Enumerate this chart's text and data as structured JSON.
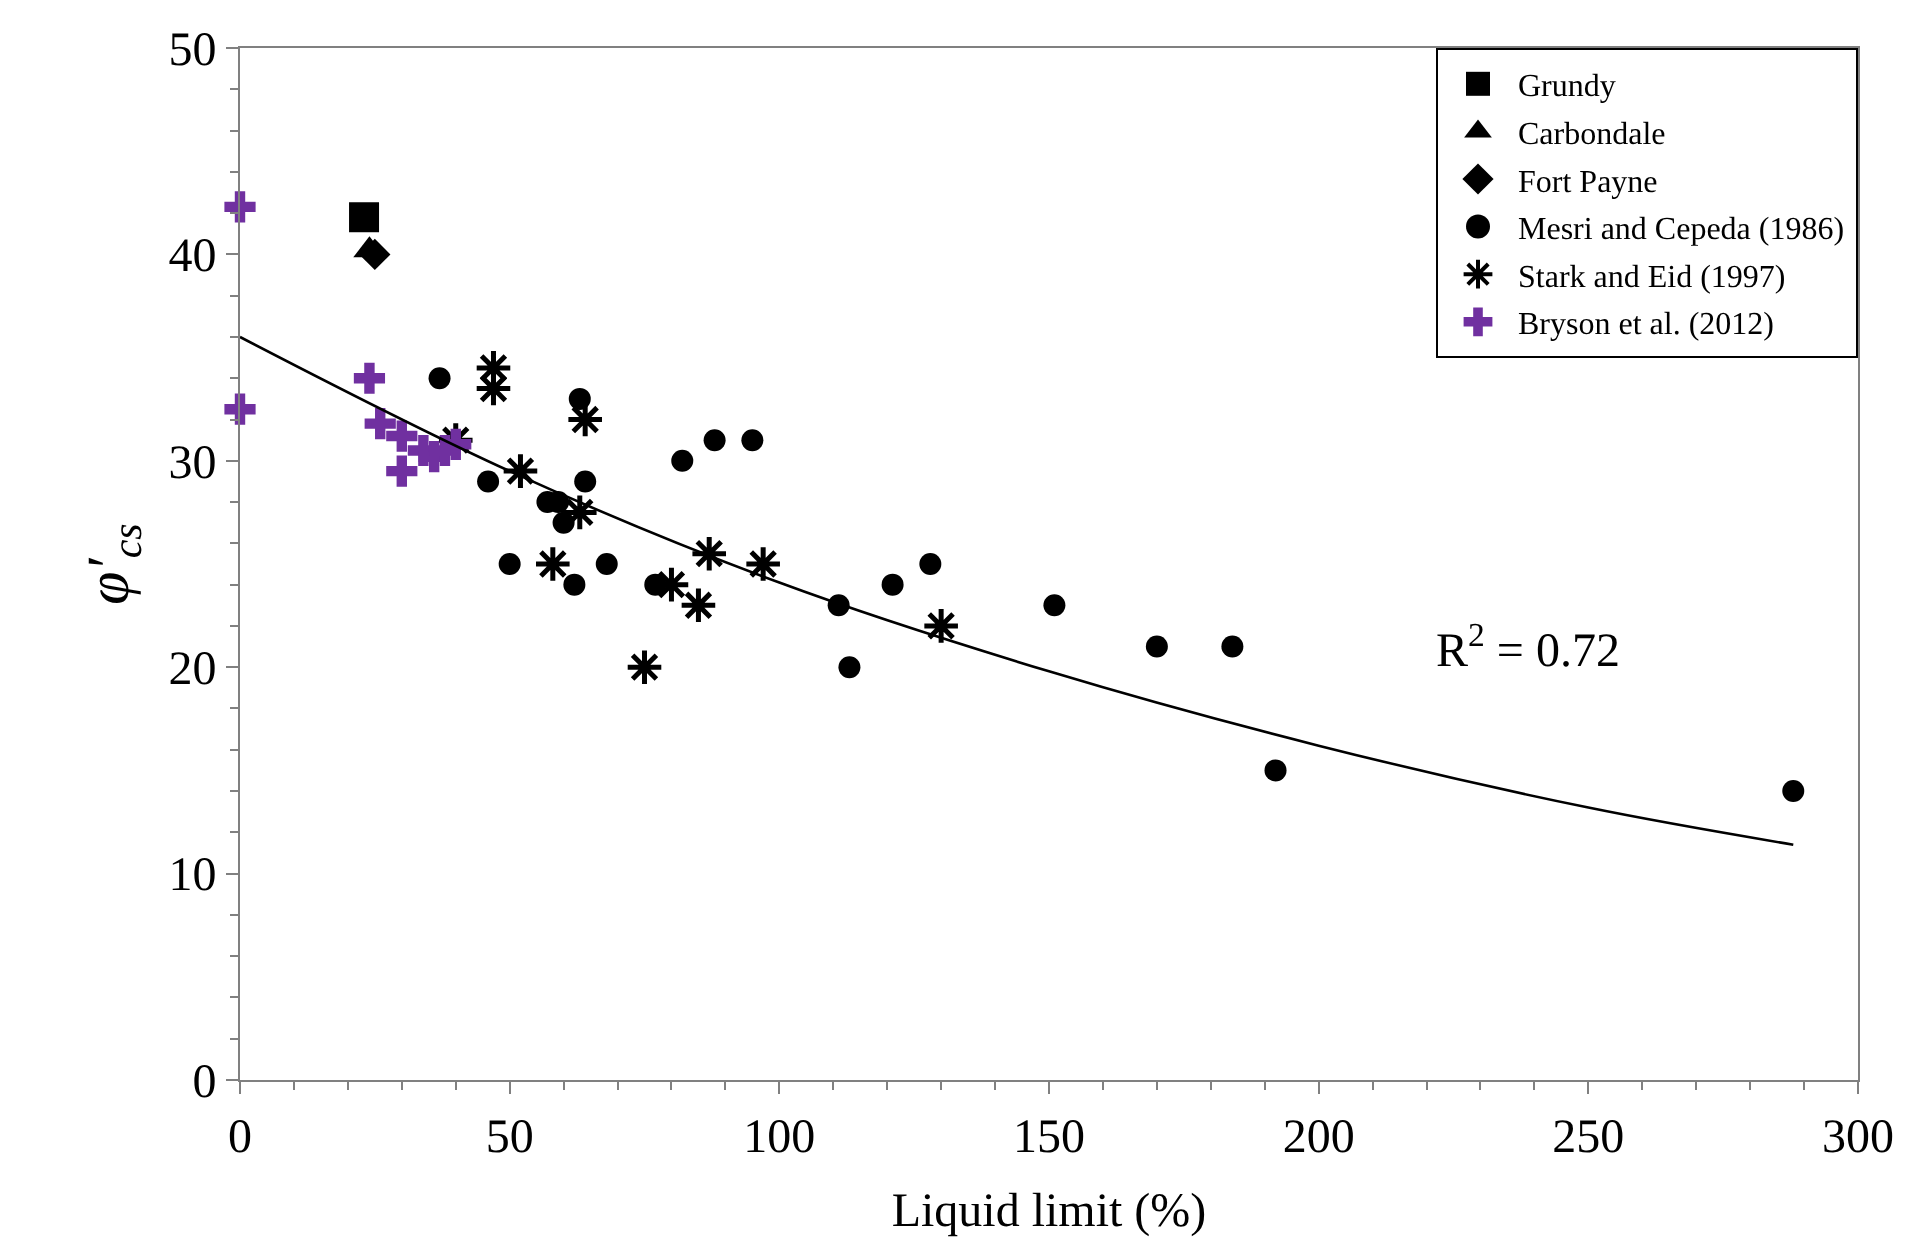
{
  "chart_data": {
    "type": "scatter",
    "xlabel": "Liquid limit (%)",
    "ylabel": "φ′$_{cs}$",
    "xlim": [
      0,
      300
    ],
    "xticks": [
      0,
      50,
      100,
      150,
      200,
      250,
      300
    ],
    "ylim": [
      0,
      50
    ],
    "yticks": [
      0,
      10,
      20,
      30,
      40,
      50
    ],
    "legend": "top right",
    "annotations": [
      "R$^{2}$ = 0.72"
    ],
    "series": [
      {
        "name": "Grundy",
        "color": "#000000",
        "marker": "square",
        "x": [
          23
        ],
        "values": [
          41.8
        ]
      },
      {
        "name": "Carbondale",
        "color": "#000000",
        "marker": "triangle",
        "x": [
          24
        ],
        "values": [
          40.2
        ]
      },
      {
        "name": "Fort Payne",
        "color": "#000000",
        "marker": "diamond",
        "x": [
          25
        ],
        "values": [
          40
        ]
      },
      {
        "name": "Mesri and Cepeda (1986)",
        "color": "#000000",
        "marker": "circle",
        "x": [
          37,
          46,
          50,
          57,
          59,
          60,
          62,
          63,
          64,
          68,
          77,
          82,
          88,
          95,
          111,
          113,
          121,
          128,
          151,
          170,
          184,
          192,
          288
        ],
        "values": [
          34,
          29,
          25,
          28,
          28,
          27,
          24,
          33,
          29,
          25,
          24,
          30,
          31,
          31,
          23,
          20,
          24,
          25,
          23,
          21,
          21,
          15,
          14
        ]
      },
      {
        "name": "Stark and Eid (1997)",
        "color": "#000000",
        "marker": "cross",
        "x": [
          40,
          47,
          47,
          52,
          58,
          63,
          64,
          75,
          80,
          85,
          87,
          97,
          130
        ],
        "values": [
          31,
          34.5,
          33.5,
          29.5,
          25,
          27.5,
          32,
          20,
          24,
          23,
          25.5,
          25,
          22
        ]
      },
      {
        "name": "Bryson et al. (2012)",
        "color": "#7030a0",
        "x": [
          0,
          0,
          24,
          26,
          30,
          30,
          34,
          36,
          38,
          40
        ],
        "values": [
          42.3,
          32.5,
          34,
          31.8,
          29.5,
          31.2,
          30.5,
          30.2,
          30.5,
          30.8
        ]
      },
      {
        "type": "line",
        "color": "#000000",
        "marker": "none",
        "line_style": "solid",
        "x": [
          0,
          50,
          100,
          150,
          200,
          250,
          288
        ],
        "values": [
          36,
          29.5,
          24.1,
          19.8,
          16.2,
          13.2,
          11.4
        ]
      }
    ]
  }
}
